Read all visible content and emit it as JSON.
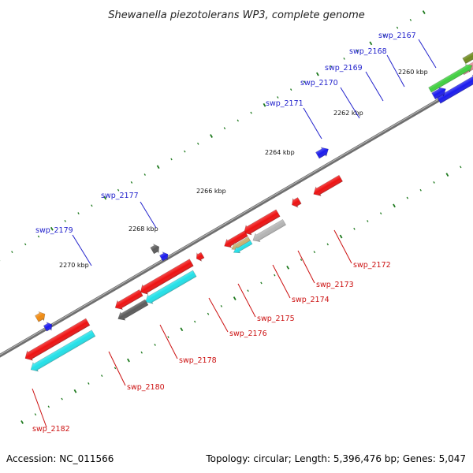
{
  "title": "Shewanella piezotolerans WP3, complete genome",
  "accession": "Accession: NC_011566",
  "topology": "Topology: circular; Length: 5,396,476 bp; Genes: 5,047",
  "colors": {
    "backbone": "#7f7f7f",
    "tick": "#1e7a1e",
    "label_forward": "#2222cc",
    "label_reverse": "#cc1111",
    "red": "#ee1111",
    "blue": "#1a1aee",
    "cyan": "#22e0e8",
    "gray": "#b4b4b4",
    "darkgray": "#5a5a5a",
    "green": "#3fcf3f",
    "olive": "#6e8a1e",
    "orange": "#f08a10",
    "pink": "#e88a9a",
    "tan": "#c8b070"
  },
  "kbp_labels": [
    "2260 kbp",
    "2262 kbp",
    "2264 kbp",
    "2266 kbp",
    "2268 kbp",
    "2270 kbp"
  ],
  "forward_genes": [
    "swp_2167",
    "swp_2168",
    "swp_2169",
    "swp_2170",
    "swp_2171",
    "swp_2177",
    "swp_2179"
  ],
  "reverse_genes": [
    "swp_2172",
    "swp_2173",
    "swp_2174",
    "swp_2175",
    "swp_2176",
    "swp_2178",
    "swp_2180",
    "swp_2182"
  ]
}
